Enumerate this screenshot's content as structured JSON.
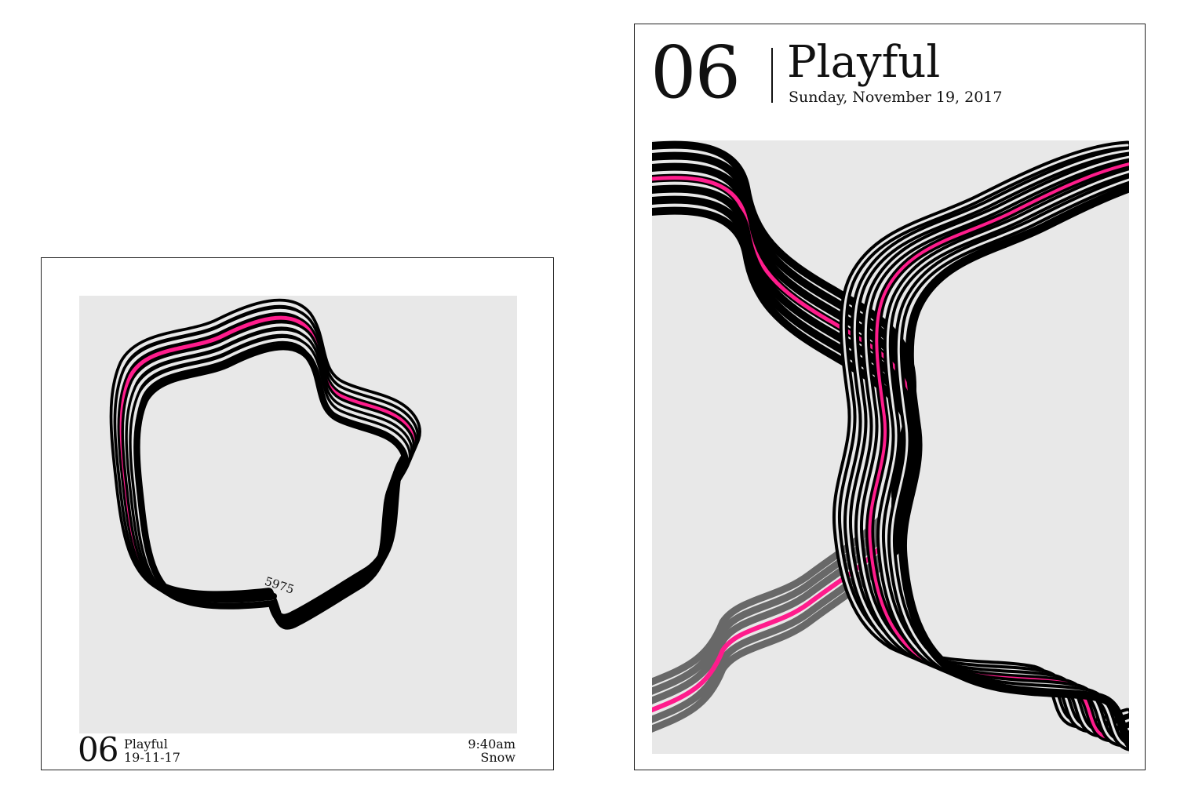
{
  "colors": {
    "accent": "#ff1c8c",
    "stroke": "#000000",
    "art_bg": "#e8e8e8",
    "paper": "#ffffff"
  },
  "small_card": {
    "number": "06",
    "title": "Playful",
    "date": "19-11-17",
    "time": "9:40am",
    "weather": "Snow",
    "marker_label": "5975"
  },
  "large_card": {
    "number": "06",
    "title": "Playful",
    "date": "Sunday, November 19, 2017"
  }
}
